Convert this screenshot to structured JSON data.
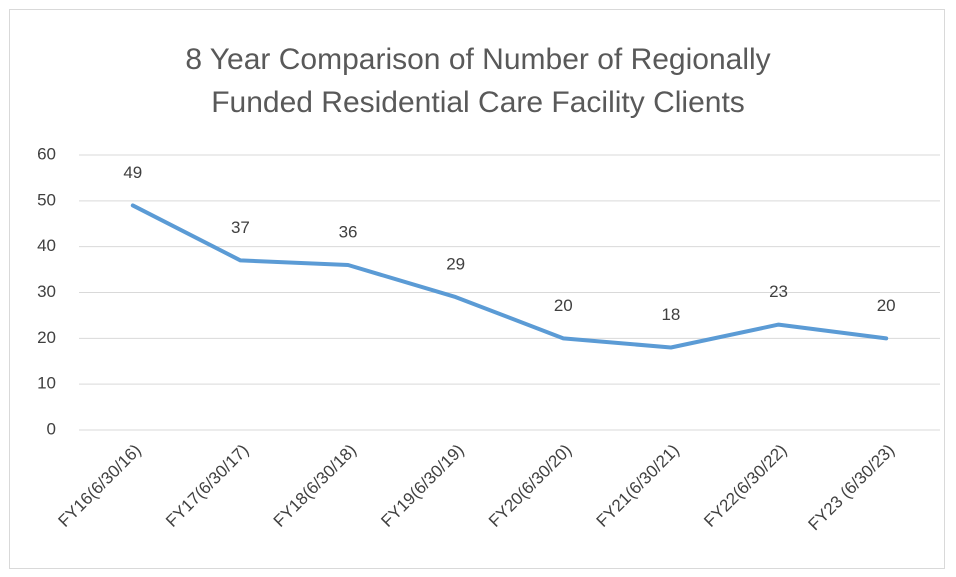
{
  "chart_data": {
    "type": "line",
    "title": "8 Year Comparison of Number of Regionally Funded Residential Care Facility Clients",
    "categories": [
      "FY16(6/30/16)",
      "FY17(6/30/17)",
      "FY18(6/30/18)",
      "FY19(6/30/19)",
      "FY20(6/30/20)",
      "FY21(6/30/21)",
      "FY22(6/30/22)",
      "FY23 (6/30/23)"
    ],
    "values": [
      49,
      37,
      36,
      29,
      20,
      18,
      23,
      20
    ],
    "color": "#5b9bd5",
    "ylim": [
      0,
      60
    ],
    "yticks": [
      0,
      10,
      20,
      30,
      40,
      50,
      60
    ],
    "grid": true
  }
}
